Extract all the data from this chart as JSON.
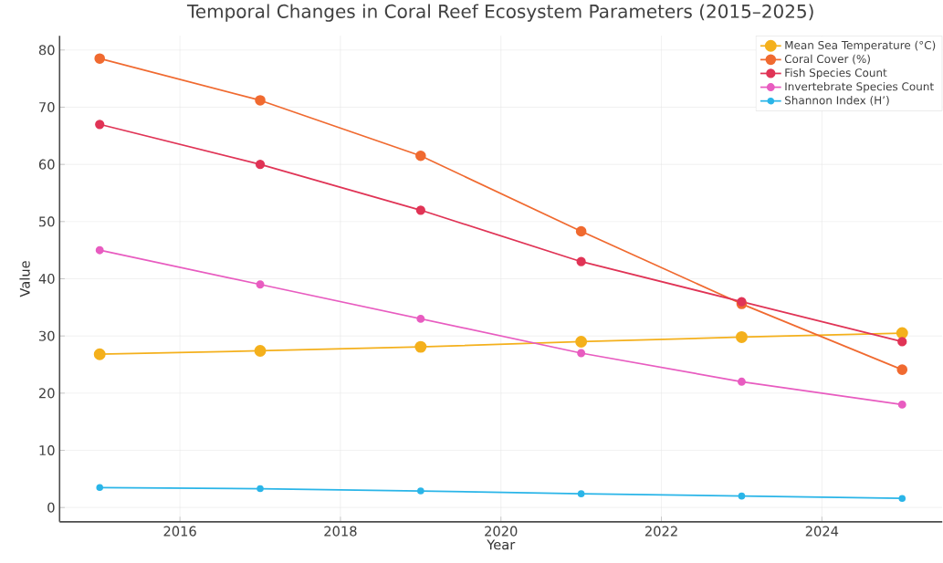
{
  "chart_data": {
    "type": "line",
    "title": "Temporal Changes in Coral Reef Ecosystem Parameters (2015–2025)",
    "xlabel": "Year",
    "ylabel": "Value",
    "x": [
      2015,
      2017,
      2019,
      2021,
      2023,
      2025
    ],
    "series": [
      {
        "name": "Mean Sea Temperature (°C)",
        "color": "#f4b01c",
        "values": [
          26.8,
          27.4,
          28.1,
          29.0,
          29.8,
          30.5
        ]
      },
      {
        "name": "Coral Cover (%)",
        "color": "#f06a30",
        "values": [
          78.5,
          71.2,
          61.5,
          48.3,
          35.6,
          24.1
        ]
      },
      {
        "name": "Fish Species Count",
        "color": "#e03456",
        "values": [
          67,
          60,
          52,
          43,
          36,
          29
        ]
      },
      {
        "name": "Invertebrate Species Count",
        "color": "#e85cc0",
        "values": [
          45,
          39,
          33,
          27,
          22,
          18
        ]
      },
      {
        "name": "Shannon Index (H’)",
        "color": "#2ab5e8",
        "values": [
          3.5,
          3.3,
          2.9,
          2.4,
          2.0,
          1.6
        ]
      }
    ],
    "xlim": [
      2014.5,
      2025.5
    ],
    "ylim": [
      -2.5,
      82.5
    ],
    "xticks": [
      2016,
      2018,
      2020,
      2022,
      2024
    ],
    "yticks": [
      0,
      10,
      20,
      30,
      40,
      50,
      60,
      70,
      80
    ],
    "grid": true,
    "legend": "top right",
    "marker": "circle",
    "line_style": "solid"
  }
}
